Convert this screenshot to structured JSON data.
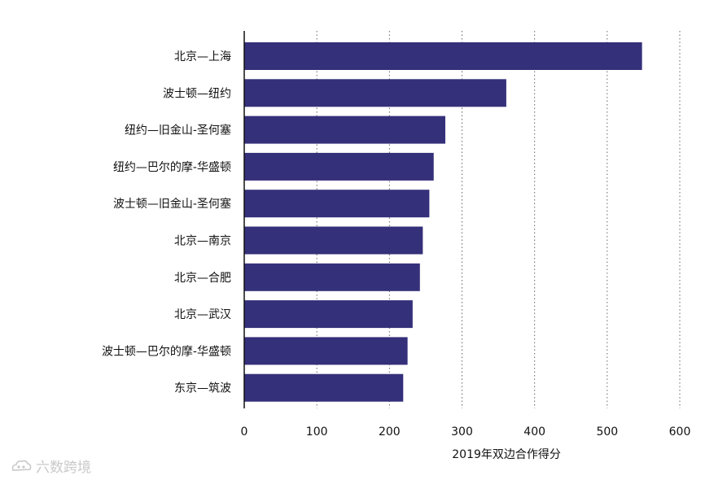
{
  "chart_data": {
    "type": "bar",
    "orientation": "horizontal",
    "categories": [
      "北京—上海",
      "波士顿—纽约",
      "纽约—旧金山-圣何塞",
      "纽约—巴尔的摩-华盛顿",
      "波士顿—旧金山-圣何塞",
      "北京—南京",
      "北京—合肥",
      "北京—武汉",
      "波士顿—巴尔的摩-华盛顿",
      "东京—筑波"
    ],
    "values": [
      548,
      361,
      277,
      261,
      255,
      246,
      242,
      232,
      225,
      219
    ],
    "xlabel": "2019年双边合作得分",
    "xlim": [
      0,
      600
    ],
    "xticks": [
      0,
      100,
      200,
      300,
      400,
      500,
      600
    ],
    "grid": "vertical dotted",
    "bar_color": "#35307a"
  },
  "watermark": {
    "text": "六数跨境",
    "logo_icon": "cloud-logo-icon"
  }
}
